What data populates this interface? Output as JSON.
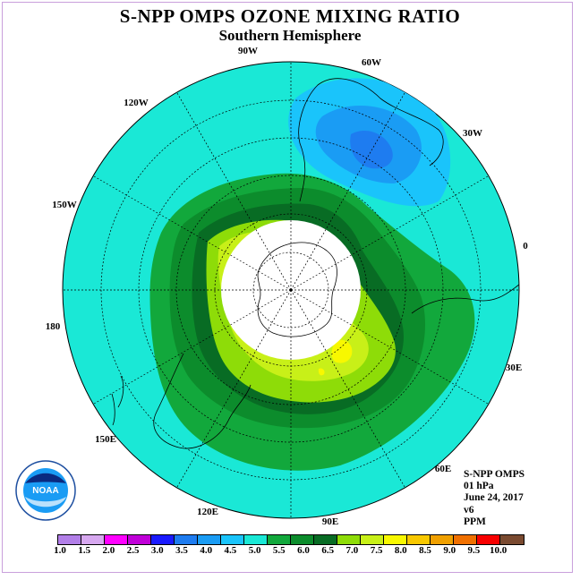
{
  "header": {
    "title": "S-NPP OMPS OZONE MIXING RATIO",
    "subtitle": "Southern Hemisphere"
  },
  "map": {
    "projection": "south-polar-stereographic",
    "longitude_labels": [
      "90W",
      "60W",
      "30W",
      "0",
      "30E",
      "60E",
      "90E",
      "120E",
      "150E",
      "180",
      "150W",
      "120W"
    ],
    "colors": {
      "background_field": "#1ae8d6",
      "missing_data_disk": "#ffffff"
    }
  },
  "info": {
    "lines": [
      "S-NPP OMPS",
      "01 hPa",
      "June 24, 2017",
      "v6",
      "PPM"
    ]
  },
  "logo": {
    "text": "NOAA",
    "ring_text": "NATIONAL OCEANIC AND ATMOSPHERIC ADMINISTRATION · U.S. DEPARTMENT OF COMMERCE"
  },
  "colorbar": {
    "colors": [
      "#b27fe8",
      "#d7a8f0",
      "#ff00ff",
      "#c000d8",
      "#1a1aff",
      "#1e7cf0",
      "#1a9cf4",
      "#1ac4fb",
      "#1ae8d6",
      "#12a83c",
      "#0c8c2c",
      "#086c24",
      "#8edc08",
      "#c8f018",
      "#f8f800",
      "#f8c800",
      "#f0a000",
      "#f07000",
      "#f80000",
      "#7a4a30"
    ],
    "labels": [
      "1.0",
      "1.5",
      "2.0",
      "2.5",
      "3.0",
      "3.5",
      "4.0",
      "4.5",
      "5.0",
      "5.5",
      "6.0",
      "6.5",
      "7.0",
      "7.5",
      "8.0",
      "8.5",
      "9.0",
      "9.5",
      "10.0"
    ]
  }
}
